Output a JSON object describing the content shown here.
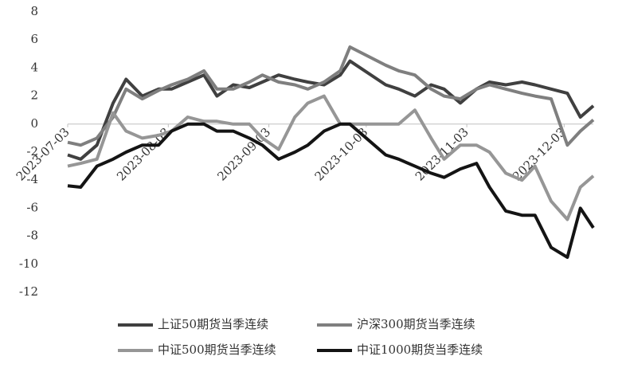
{
  "chart_data": {
    "type": "line",
    "x": [
      "2023-07-03",
      "2023-07-07",
      "2023-07-12",
      "2023-07-17",
      "2023-07-21",
      "2023-07-26",
      "2023-07-31",
      "2023-08-04",
      "2023-08-09",
      "2023-08-14",
      "2023-08-18",
      "2023-08-23",
      "2023-08-28",
      "2023-09-01",
      "2023-09-06",
      "2023-09-11",
      "2023-09-15",
      "2023-09-20",
      "2023-09-25",
      "2023-09-28",
      "2023-10-09",
      "2023-10-13",
      "2023-10-18",
      "2023-10-23",
      "2023-10-27",
      "2023-11-01",
      "2023-11-06",
      "2023-11-10",
      "2023-11-15",
      "2023-11-20",
      "2023-11-24",
      "2023-11-29",
      "2023-12-04",
      "2023-12-08",
      "2023-12-12"
    ],
    "series": [
      {
        "name": "上证50期货当季连续",
        "color": "#404040",
        "values": [
          -2.2,
          -2.5,
          -1.5,
          1.5,
          3.2,
          2.0,
          2.5,
          2.5,
          3.0,
          3.5,
          2.0,
          2.8,
          2.6,
          3.0,
          3.5,
          3.2,
          3.0,
          2.8,
          3.5,
          4.5,
          2.8,
          2.5,
          2.0,
          2.8,
          2.5,
          1.5,
          2.5,
          3.0,
          2.8,
          3.0,
          2.8,
          2.5,
          2.2,
          0.5,
          1.3
        ]
      },
      {
        "name": "沪深300期货当季连续",
        "color": "#7f7f7f",
        "values": [
          -1.3,
          -1.5,
          -1.0,
          0.5,
          2.5,
          1.8,
          2.4,
          2.8,
          3.2,
          3.8,
          2.5,
          2.5,
          3.0,
          3.5,
          3.0,
          2.8,
          2.5,
          3.0,
          3.8,
          5.5,
          4.2,
          3.8,
          3.5,
          2.5,
          2.0,
          1.8,
          2.5,
          2.8,
          2.5,
          2.2,
          2.0,
          1.8,
          -1.5,
          -0.5,
          0.3
        ]
      },
      {
        "name": "中证500期货当季连续",
        "color": "#969696",
        "values": [
          -3.0,
          -2.8,
          -2.5,
          0.8,
          -0.5,
          -1.0,
          -0.8,
          -0.5,
          0.5,
          0.2,
          0.2,
          0.0,
          0.0,
          -1.0,
          -1.8,
          0.5,
          1.5,
          2.0,
          0.0,
          0.0,
          0.0,
          0.0,
          1.0,
          -1.0,
          -2.5,
          -1.5,
          -1.5,
          -2.0,
          -3.5,
          -4.0,
          -3.0,
          -5.5,
          -6.8,
          -4.5,
          -3.7
        ]
      },
      {
        "name": "中证1000期货当季连续",
        "color": "#141414",
        "values": [
          -4.4,
          -4.5,
          -3.0,
          -2.5,
          -2.0,
          -1.5,
          -1.5,
          -0.5,
          0.0,
          0.0,
          -0.5,
          -0.5,
          -1.0,
          -1.5,
          -2.5,
          -2.0,
          -1.5,
          -0.5,
          0.0,
          0.0,
          -2.2,
          -2.5,
          -3.0,
          -3.5,
          -3.8,
          -3.2,
          -2.8,
          -4.5,
          -6.2,
          -6.5,
          -6.5,
          -8.8,
          -9.5,
          -6.0,
          -7.4
        ]
      }
    ],
    "xlim": [
      "2023-07-03",
      "2023-12-12"
    ],
    "xticks": [
      "2023-07-03",
      "2023-08-03",
      "2023-09-03",
      "2023-10-03",
      "2023-11-03",
      "2023-12-03"
    ],
    "ylim": [
      -12,
      8
    ],
    "yticks": [
      -12,
      -10,
      -8,
      -6,
      -4,
      -2,
      0,
      2,
      4,
      6,
      8
    ]
  }
}
